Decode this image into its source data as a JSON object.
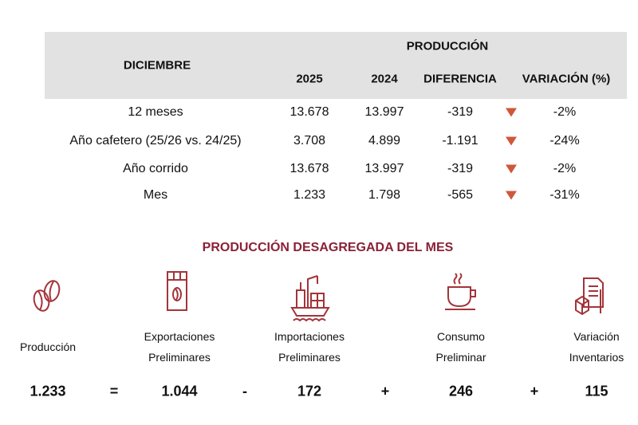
{
  "table": {
    "header": {
      "row_label": "DICIEMBRE",
      "group": "PRODUCCIÓN",
      "columns": [
        "2025",
        "2024",
        "DIFERENCIA",
        "VARIACIÓN (%)"
      ]
    },
    "rows": [
      {
        "label": "12 meses",
        "y2025": "13.678",
        "y2024": "13.997",
        "diff": "-319",
        "var": "-2%",
        "trend": "down"
      },
      {
        "label": "Año cafetero (25/26 vs. 24/25)",
        "y2025": "3.708",
        "y2024": "4.899",
        "diff": "-1.191",
        "var": "-24%",
        "trend": "down"
      },
      {
        "label": "Año corrido",
        "y2025": "13.678",
        "y2024": "13.997",
        "diff": "-319",
        "var": "-2%",
        "trend": "down"
      },
      {
        "label": "Mes",
        "y2025": "1.233",
        "y2024": "1.798",
        "diff": "-565",
        "var": "-31%",
        "trend": "down"
      }
    ]
  },
  "breakdown": {
    "title": "PRODUCCIÓN DESAGREGADA DEL MES",
    "items": [
      {
        "label1": "Producción",
        "label2": "",
        "value": "1.233",
        "icon": "coffee-beans-icon"
      },
      {
        "label1": "Exportaciones",
        "label2": "Preliminares",
        "value": "1.044",
        "icon": "coffee-bag-icon"
      },
      {
        "label1": "Importaciones",
        "label2": "Preliminares",
        "value": "172",
        "icon": "cargo-ship-icon"
      },
      {
        "label1": "Consumo",
        "label2": "Preliminar",
        "value": "246",
        "icon": "coffee-cup-icon"
      },
      {
        "label1": "Variación",
        "label2": "Inventarios",
        "value": "115",
        "icon": "inventory-icon"
      }
    ],
    "operators": [
      "=",
      "-",
      "+",
      "+"
    ]
  },
  "colors": {
    "accent": "#8a2236",
    "icon": "#a3343a",
    "down": "#d0573a",
    "header_bg": "#e2e2e2"
  }
}
